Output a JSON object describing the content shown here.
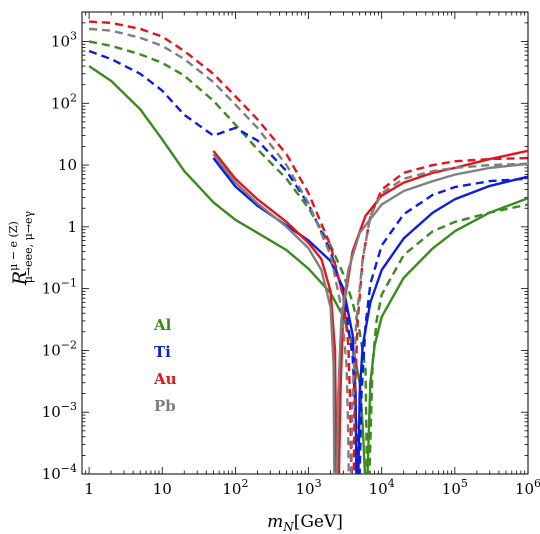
{
  "chart_data": {
    "type": "line",
    "xlabel": {
      "main": "m",
      "sub": "N",
      "suffix": "[GeV]"
    },
    "ylabel": {
      "main": "R",
      "sup": "μ − e (Z)",
      "sub": "μ→eee, μ→eγ"
    },
    "xscale": "log",
    "yscale": "log",
    "xlim": [
      0.8,
      1000000
    ],
    "ylim": [
      0.0001,
      3000
    ],
    "grid": false,
    "legend_position": "center-left",
    "x_ticks": [
      {
        "value": 1,
        "label": "1"
      },
      {
        "value": 10,
        "label": "10"
      },
      {
        "value": 100,
        "base": "10",
        "exp": "2"
      },
      {
        "value": 1000,
        "base": "10",
        "exp": "3"
      },
      {
        "value": 10000,
        "base": "10",
        "exp": "4"
      },
      {
        "value": 100000,
        "base": "10",
        "exp": "5"
      },
      {
        "value": 1000000,
        "base": "10",
        "exp": "6"
      }
    ],
    "y_ticks": [
      {
        "value": 0.0001,
        "base": "10",
        "exp": "−4"
      },
      {
        "value": 0.001,
        "base": "10",
        "exp": "−3"
      },
      {
        "value": 0.01,
        "base": "10",
        "exp": "−2"
      },
      {
        "value": 0.1,
        "base": "10",
        "exp": "−1"
      },
      {
        "value": 1,
        "label": "1"
      },
      {
        "value": 10,
        "label": "10"
      },
      {
        "value": 100,
        "base": "10",
        "exp": "2"
      },
      {
        "value": 1000,
        "base": "10",
        "exp": "3"
      }
    ],
    "legend": [
      {
        "label": "Al",
        "color": "#3a8a1e"
      },
      {
        "label": "Ti",
        "color": "#0b1de0"
      },
      {
        "label": "Au",
        "color": "#e3141a"
      },
      {
        "label": "Pb",
        "color": "#7f7f7f"
      }
    ],
    "series": [
      {
        "name": "Al",
        "variant": "R_μ→eee",
        "color": "#3a8a1e",
        "points": [
          [
            1,
            400
          ],
          [
            2,
            230
          ],
          [
            5,
            80
          ],
          [
            10,
            26
          ],
          [
            20,
            8
          ],
          [
            50,
            2.5
          ],
          [
            100,
            1.3
          ],
          [
            200,
            0.8
          ],
          [
            500,
            0.42
          ],
          [
            1000,
            0.21
          ],
          [
            2000,
            0.085
          ],
          [
            3000,
            0.035
          ],
          [
            4000,
            0.012
          ],
          [
            5000,
            0.003
          ],
          [
            5500,
            0.0006
          ],
          [
            5900,
            0.0001
          ],
          [
            6400,
            0.0001
          ],
          [
            7000,
            0.003
          ],
          [
            8000,
            0.012
          ],
          [
            10000,
            0.035
          ],
          [
            20000,
            0.15
          ],
          [
            50000,
            0.45
          ],
          [
            100000,
            0.85
          ],
          [
            300000,
            1.7
          ],
          [
            1000000,
            2.9
          ]
        ]
      },
      {
        "name": "Al",
        "variant": "R_μ→eγ",
        "color": "#3a8a1e",
        "points": [
          [
            1,
            1000
          ],
          [
            2,
            850
          ],
          [
            5,
            620
          ],
          [
            10,
            450
          ],
          [
            20,
            280
          ],
          [
            50,
            110
          ],
          [
            100,
            45
          ],
          [
            200,
            18
          ],
          [
            500,
            6
          ],
          [
            1000,
            2
          ],
          [
            2000,
            0.5
          ],
          [
            3000,
            0.17
          ],
          [
            4000,
            0.06
          ],
          [
            5000,
            0.02
          ],
          [
            6000,
            0.005
          ],
          [
            6300,
            0.0001
          ],
          [
            6800,
            0.0001
          ],
          [
            7500,
            0.006
          ],
          [
            8500,
            0.03
          ],
          [
            10000,
            0.08
          ],
          [
            20000,
            0.35
          ],
          [
            50000,
            0.85
          ],
          [
            100000,
            1.2
          ],
          [
            300000,
            1.7
          ],
          [
            1000000,
            2.3
          ]
        ]
      },
      {
        "name": "Ti",
        "variant": "R_μ→eee",
        "color": "#0b1de0",
        "points": [
          [
            50,
            13
          ],
          [
            100,
            4.5
          ],
          [
            200,
            2.2
          ],
          [
            500,
            1.05
          ],
          [
            1000,
            0.6
          ],
          [
            2000,
            0.28
          ],
          [
            3000,
            0.1
          ],
          [
            4000,
            0.018
          ],
          [
            4400,
            0.002
          ],
          [
            4500,
            0.0001
          ],
          [
            4800,
            0.0001
          ],
          [
            5000,
            0.002
          ],
          [
            5500,
            0.012
          ],
          [
            7000,
            0.06
          ],
          [
            10000,
            0.2
          ],
          [
            20000,
            0.65
          ],
          [
            50000,
            1.7
          ],
          [
            100000,
            2.8
          ],
          [
            300000,
            4.6
          ],
          [
            1000000,
            6.5
          ]
        ]
      },
      {
        "name": "Ti",
        "variant": "R_μ→eγ",
        "color": "#0b1de0",
        "points": [
          [
            1,
            700
          ],
          [
            2,
            520
          ],
          [
            5,
            300
          ],
          [
            10,
            160
          ],
          [
            20,
            65
          ],
          [
            50,
            30
          ],
          [
            100,
            40
          ],
          [
            200,
            25
          ],
          [
            500,
            8
          ],
          [
            1000,
            2.3
          ],
          [
            2000,
            0.4
          ],
          [
            3000,
            0.08
          ],
          [
            4000,
            0.008
          ],
          [
            4500,
            0.0006
          ],
          [
            4800,
            0.0001
          ],
          [
            5000,
            0.0001
          ],
          [
            5300,
            0.002
          ],
          [
            6000,
            0.025
          ],
          [
            7000,
            0.12
          ],
          [
            10000,
            0.5
          ],
          [
            20000,
            1.6
          ],
          [
            50000,
            3.3
          ],
          [
            100000,
            4.4
          ],
          [
            300000,
            5.5
          ],
          [
            1000000,
            6
          ]
        ]
      },
      {
        "name": "Au",
        "variant": "R_μ→eee",
        "color": "#e3141a",
        "points": [
          [
            50,
            17
          ],
          [
            100,
            6
          ],
          [
            200,
            2.8
          ],
          [
            500,
            1.2
          ],
          [
            1000,
            0.55
          ],
          [
            1500,
            0.3
          ],
          [
            2000,
            0.09
          ],
          [
            2300,
            0.01
          ],
          [
            2400,
            0.0001
          ],
          [
            2600,
            0.0001
          ],
          [
            2750,
            0.003
          ],
          [
            3000,
            0.05
          ],
          [
            4000,
            0.4
          ],
          [
            6000,
            1.5
          ],
          [
            10000,
            3.2
          ],
          [
            20000,
            5.2
          ],
          [
            50000,
            7.5
          ],
          [
            100000,
            9
          ],
          [
            300000,
            12.5
          ],
          [
            1000000,
            17
          ]
        ]
      },
      {
        "name": "Au",
        "variant": "R_μ→eγ",
        "color": "#e3141a",
        "points": [
          [
            1,
            2100
          ],
          [
            2,
            2000
          ],
          [
            5,
            1600
          ],
          [
            10,
            1200
          ],
          [
            20,
            700
          ],
          [
            50,
            300
          ],
          [
            100,
            130
          ],
          [
            200,
            55
          ],
          [
            500,
            15
          ],
          [
            1000,
            3.5
          ],
          [
            2000,
            0.5
          ],
          [
            3000,
            0.07
          ],
          [
            3500,
            0.012
          ],
          [
            3700,
            0.0015
          ],
          [
            3850,
            0.0001
          ],
          [
            4150,
            0.0001
          ],
          [
            4300,
            0.002
          ],
          [
            4700,
            0.03
          ],
          [
            5500,
            0.3
          ],
          [
            7000,
            1.5
          ],
          [
            10000,
            4
          ],
          [
            20000,
            7.5
          ],
          [
            50000,
            10
          ],
          [
            100000,
            11.5
          ],
          [
            300000,
            12.5
          ],
          [
            1000000,
            13
          ]
        ]
      },
      {
        "name": "Pb",
        "variant": "R_μ→eee",
        "color": "#7f7f7f",
        "points": [
          [
            50,
            15
          ],
          [
            100,
            5.2
          ],
          [
            200,
            2.4
          ],
          [
            500,
            1
          ],
          [
            1000,
            0.45
          ],
          [
            1500,
            0.2
          ],
          [
            2000,
            0.05
          ],
          [
            2200,
            0.006
          ],
          [
            2250,
            0.0001
          ],
          [
            2450,
            0.0001
          ],
          [
            2550,
            0.002
          ],
          [
            2800,
            0.03
          ],
          [
            3500,
            0.2
          ],
          [
            5000,
            0.8
          ],
          [
            10000,
            2.3
          ],
          [
            20000,
            3.8
          ],
          [
            50000,
            5.5
          ],
          [
            100000,
            7
          ],
          [
            300000,
            9
          ],
          [
            1000000,
            10.5
          ]
        ]
      },
      {
        "name": "Pb",
        "variant": "R_μ→eγ",
        "color": "#7f7f7f",
        "points": [
          [
            1,
            1600
          ],
          [
            2,
            1500
          ],
          [
            5,
            1150
          ],
          [
            10,
            850
          ],
          [
            20,
            520
          ],
          [
            50,
            220
          ],
          [
            100,
            95
          ],
          [
            200,
            40
          ],
          [
            500,
            10
          ],
          [
            1000,
            2.4
          ],
          [
            2000,
            0.35
          ],
          [
            2800,
            0.05
          ],
          [
            3300,
            0.006
          ],
          [
            3450,
            0.0008
          ],
          [
            3550,
            0.0001
          ],
          [
            3850,
            0.0001
          ],
          [
            4000,
            0.002
          ],
          [
            4500,
            0.03
          ],
          [
            5500,
            0.3
          ],
          [
            7000,
            1.5
          ],
          [
            10000,
            3.5
          ],
          [
            20000,
            6
          ],
          [
            50000,
            8
          ],
          [
            100000,
            9
          ],
          [
            300000,
            10
          ],
          [
            1000000,
            10.5
          ]
        ]
      }
    ]
  }
}
